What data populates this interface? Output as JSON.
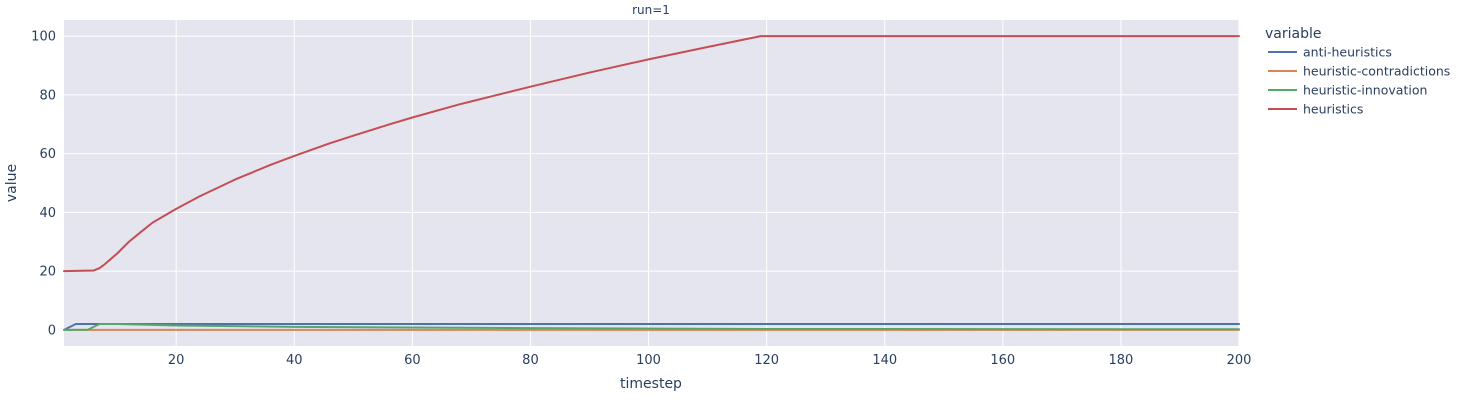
{
  "chart_data": {
    "type": "line",
    "title": "run=1",
    "xlabel": "timestep",
    "ylabel": "value",
    "xlim": [
      1,
      200
    ],
    "ylim": [
      -5.5,
      105.5
    ],
    "x_ticks": [
      20,
      40,
      60,
      80,
      100,
      120,
      140,
      160,
      180,
      200
    ],
    "y_ticks": [
      0,
      20,
      40,
      60,
      80,
      100
    ],
    "grid": true,
    "legend_title": "variable",
    "legend_position": "right",
    "series": [
      {
        "name": "anti-heuristics",
        "color": "#4C72B0",
        "points": [
          [
            1,
            0
          ],
          [
            3,
            2
          ],
          [
            200,
            2
          ]
        ]
      },
      {
        "name": "heuristic-contradictions",
        "color": "#DD8452",
        "points": [
          [
            1,
            0
          ],
          [
            200,
            0
          ]
        ]
      },
      {
        "name": "heuristic-innovation",
        "color": "#55A868",
        "points": [
          [
            1,
            0
          ],
          [
            5,
            0
          ],
          [
            7,
            2
          ],
          [
            10,
            2
          ],
          [
            20,
            1.5
          ],
          [
            40,
            1
          ],
          [
            60,
            0.8
          ],
          [
            80,
            0.6
          ],
          [
            120,
            0.3
          ],
          [
            200,
            0.2
          ]
        ]
      },
      {
        "name": "heuristics",
        "color": "#C44E52",
        "points": [
          [
            1,
            20
          ],
          [
            6,
            20.2
          ],
          [
            7,
            21
          ],
          [
            8,
            22.5
          ],
          [
            10,
            26
          ],
          [
            12,
            30
          ],
          [
            14,
            33.3
          ],
          [
            16,
            36.5
          ],
          [
            20,
            41.2
          ],
          [
            24,
            45.5
          ],
          [
            30,
            51.2
          ],
          [
            36,
            56.2
          ],
          [
            40,
            59.2
          ],
          [
            46,
            63.5
          ],
          [
            50,
            66.1
          ],
          [
            56,
            69.9
          ],
          [
            60,
            72.3
          ],
          [
            68,
            76.8
          ],
          [
            70,
            77.8
          ],
          [
            80,
            82.8
          ],
          [
            90,
            87.6
          ],
          [
            100,
            92.1
          ],
          [
            110,
            96.3
          ],
          [
            119,
            100
          ],
          [
            200,
            100
          ]
        ]
      }
    ]
  }
}
